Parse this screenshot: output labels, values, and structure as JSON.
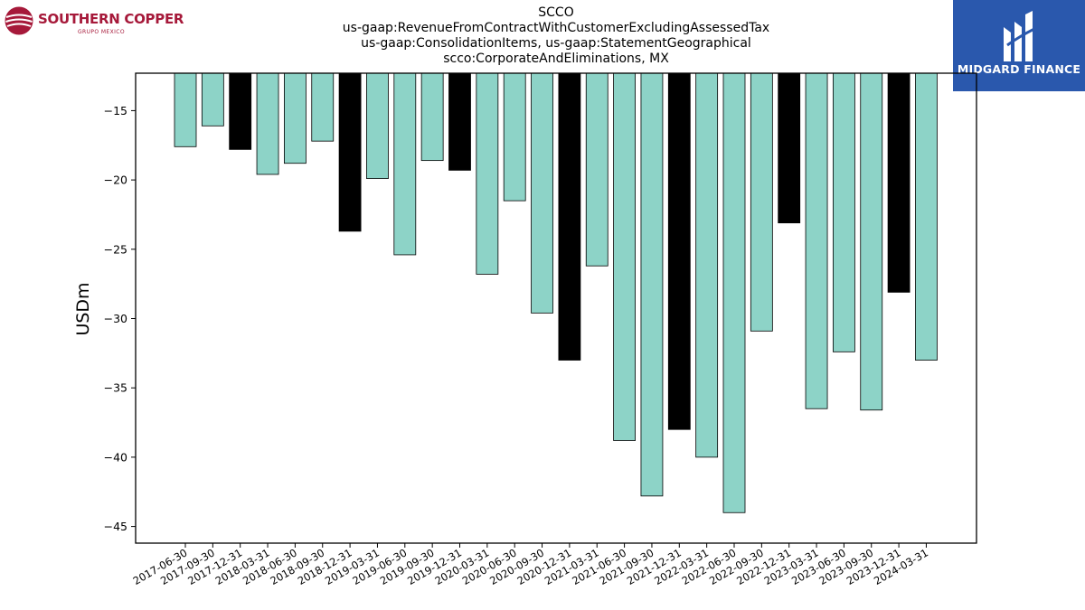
{
  "logos": {
    "left_brand": "SOUTHERN COPPER",
    "left_sub": "GRUPO MEXICO",
    "right_brand": "MIDGARD FINANCE"
  },
  "colors": {
    "bar_default": "#8dd3c7",
    "bar_q4": "#000000",
    "left_brand": "#a6193a",
    "right_brand_bg": "#2a58ad"
  },
  "chart_data": {
    "type": "bar",
    "title": [
      "SCCO",
      "us-gaap:RevenueFromContractWithCustomerExcludingAssessedTax",
      "us-gaap:ConsolidationItems, us-gaap:StatementGeographical",
      "scco:CorporateAndEliminations, MX"
    ],
    "ylabel": "USDm",
    "xlabel": "",
    "categories": [
      "2017-06-30",
      "2017-09-30",
      "2017-12-31",
      "2018-03-31",
      "2018-06-30",
      "2018-09-30",
      "2018-12-31",
      "2019-03-31",
      "2019-06-30",
      "2019-09-30",
      "2019-12-31",
      "2020-03-31",
      "2020-06-30",
      "2020-09-30",
      "2020-12-31",
      "2021-03-31",
      "2021-06-30",
      "2021-09-30",
      "2021-12-31",
      "2022-03-31",
      "2022-06-30",
      "2022-09-30",
      "2022-12-31",
      "2023-03-31",
      "2023-06-30",
      "2023-09-30",
      "2023-12-31",
      "2024-03-31"
    ],
    "values": [
      -17.6,
      -16.1,
      -17.8,
      -19.6,
      -18.8,
      -17.2,
      -23.7,
      -19.9,
      -25.4,
      -18.6,
      -19.3,
      -26.8,
      -21.5,
      -29.6,
      -33.0,
      -26.2,
      -38.8,
      -42.8,
      -38.0,
      -40.0,
      -44.0,
      -30.9,
      -23.1,
      -36.5,
      -32.4,
      -36.6,
      -28.1,
      -33.0
    ],
    "highlight": [
      false,
      false,
      true,
      false,
      false,
      false,
      true,
      false,
      false,
      false,
      true,
      false,
      false,
      false,
      true,
      false,
      false,
      false,
      true,
      false,
      false,
      false,
      true,
      false,
      false,
      false,
      true,
      false
    ],
    "ylim": [
      -46.2,
      -12.3
    ],
    "yticks": [
      -15,
      -20,
      -25,
      -30,
      -35,
      -40,
      -45
    ],
    "ytick_labels": [
      "−15",
      "−20",
      "−25",
      "−30",
      "−35",
      "−40",
      "−45"
    ],
    "grid": false,
    "legend": "none"
  }
}
